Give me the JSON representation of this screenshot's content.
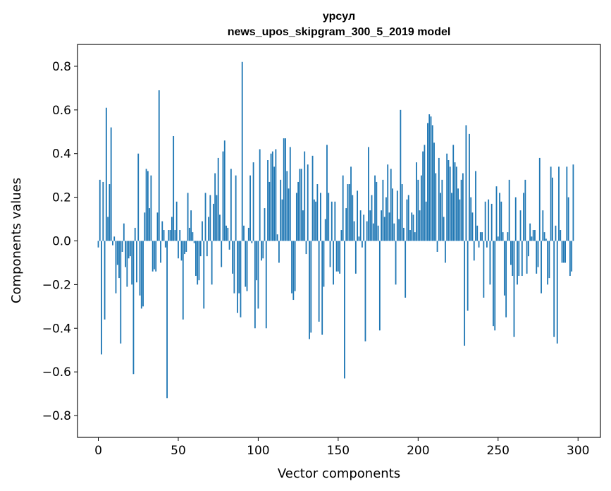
{
  "chart_data": {
    "type": "bar",
    "title": "урсул",
    "subtitle": "news_upos_skipgram_300_5_2019 model",
    "xlabel": "Vector components",
    "ylabel": "Components values",
    "xlim": [
      -13,
      314
    ],
    "ylim": [
      -0.9,
      0.9
    ],
    "xticks": [
      0,
      50,
      100,
      150,
      200,
      250,
      300
    ],
    "xtick_labels": [
      "0",
      "50",
      "100",
      "150",
      "200",
      "250",
      "300"
    ],
    "yticks": [
      0.8,
      0.6,
      0.4,
      0.2,
      0.0,
      -0.2,
      -0.4,
      -0.6,
      -0.8
    ],
    "ytick_labels": [
      "0.8",
      "0.6",
      "0.4",
      "0.2",
      "0.0",
      "−0.2",
      "−0.4",
      "−0.6",
      "−0.8"
    ],
    "grid": false,
    "color": "#1f77b4",
    "x_start": 0,
    "values": [
      -0.03,
      0.28,
      -0.52,
      0.27,
      -0.36,
      0.61,
      0.11,
      0.26,
      0.52,
      -0.02,
      0.02,
      -0.24,
      -0.11,
      -0.17,
      -0.47,
      -0.05,
      0.08,
      -0.12,
      -0.21,
      -0.08,
      -0.07,
      -0.2,
      -0.61,
      0.06,
      -0.19,
      0.4,
      -0.25,
      -0.31,
      -0.3,
      0.13,
      0.33,
      0.32,
      0.15,
      0.3,
      -0.14,
      -0.13,
      -0.14,
      0.13,
      0.69,
      -0.1,
      0.09,
      0.05,
      -0.03,
      -0.72,
      0.05,
      0.05,
      0.11,
      0.48,
      0.05,
      0.18,
      -0.08,
      0.05,
      -0.09,
      -0.36,
      -0.06,
      -0.05,
      0.22,
      0.06,
      0.14,
      0.04,
      -0.01,
      -0.16,
      -0.2,
      -0.18,
      -0.07,
      0.09,
      -0.31,
      0.22,
      -0.07,
      0.11,
      0.21,
      -0.2,
      0.17,
      0.31,
      0.21,
      0.38,
      0.12,
      -0.12,
      0.41,
      0.46,
      0.07,
      0.06,
      -0.04,
      0.33,
      -0.15,
      -0.24,
      0.3,
      -0.33,
      -0.24,
      -0.35,
      0.82,
      0.07,
      -0.21,
      -0.23,
      0.06,
      0.3,
      -0.01,
      0.36,
      -0.4,
      -0.18,
      -0.31,
      0.42,
      -0.09,
      -0.08,
      0.15,
      -0.4,
      0.37,
      0.27,
      0.4,
      0.41,
      0.34,
      0.42,
      0.03,
      -0.1,
      0.28,
      0.19,
      0.47,
      0.47,
      0.32,
      0.24,
      0.43,
      -0.24,
      -0.27,
      -0.23,
      0.22,
      0.27,
      0.33,
      0.33,
      0.14,
      0.41,
      -0.06,
      0.35,
      -0.45,
      -0.42,
      0.39,
      0.19,
      0.18,
      0.26,
      -0.37,
      0.22,
      -0.43,
      -0.21,
      0.1,
      0.44,
      0.22,
      -0.12,
      0.18,
      -0.2,
      0.18,
      -0.14,
      -0.14,
      -0.15,
      0.05,
      0.3,
      -0.63,
      0.15,
      0.26,
      0.26,
      0.34,
      0.21,
      0.09,
      -0.15,
      0.23,
      0.02,
      0.14,
      -0.03,
      0.12,
      -0.46,
      0.09,
      0.43,
      0.14,
      0.21,
      0.08,
      0.3,
      0.27,
      0.07,
      -0.41,
      0.14,
      0.28,
      0.11,
      0.2,
      0.35,
      0.13,
      0.33,
      0.24,
      0.08,
      -0.2,
      0.23,
      0.1,
      0.6,
      0.26,
      0.06,
      -0.26,
      0.19,
      0.21,
      0.05,
      0.13,
      0.12,
      0.04,
      0.36,
      0.28,
      0.14,
      0.3,
      0.41,
      0.44,
      0.18,
      0.54,
      0.58,
      0.57,
      0.53,
      0.45,
      0.31,
      -0.05,
      0.38,
      0.22,
      0.28,
      0.11,
      -0.1,
      0.4,
      0.37,
      0.34,
      0.22,
      0.44,
      0.36,
      0.34,
      0.24,
      0.19,
      0.28,
      0.31,
      -0.48,
      0.53,
      -0.32,
      0.49,
      0.2,
      0.13,
      -0.09,
      0.32,
      0.07,
      -0.03,
      0.04,
      0.04,
      -0.26,
      0.18,
      -0.03,
      0.19,
      -0.2,
      0.17,
      -0.39,
      -0.41,
      0.25,
      0.02,
      0.22,
      0.18,
      0.04,
      -0.25,
      -0.35,
      0.04,
      0.28,
      -0.11,
      -0.16,
      -0.44,
      0.2,
      -0.2,
      -0.16,
      0.14,
      -0.16,
      0.22,
      0.28,
      -0.15,
      -0.07,
      0.08,
      0.02,
      0.05,
      0.05,
      -0.15,
      -0.12,
      0.38,
      -0.24,
      0.14,
      0.04,
      0.01,
      -0.2,
      -0.17,
      0.34,
      0.29,
      -0.44,
      0.07,
      -0.47,
      0.34,
      0.05,
      -0.1,
      -0.1,
      -0.1,
      0.34,
      0.2,
      -0.16,
      -0.14,
      0.35
    ]
  }
}
